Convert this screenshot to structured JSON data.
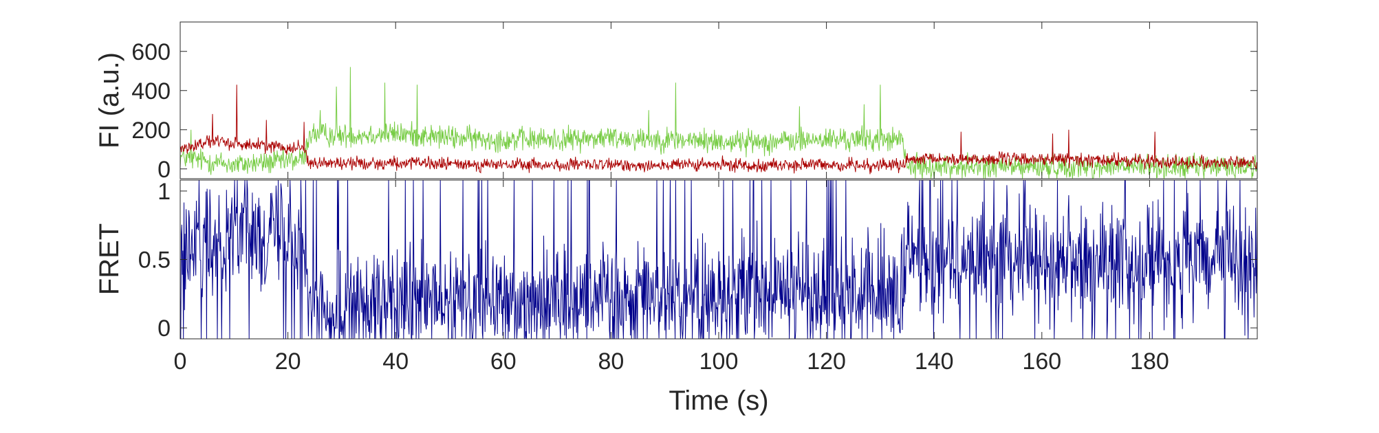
{
  "chart_data": [
    {
      "type": "line",
      "panel": "top",
      "ylabel": "FI (a.u.)",
      "xlabel": "",
      "xlim": [
        0,
        200
      ],
      "ylim": [
        -50,
        750
      ],
      "x_ticks": [
        0,
        20,
        40,
        60,
        80,
        100,
        120,
        140,
        160,
        180
      ],
      "y_ticks": [
        0,
        200,
        400,
        600
      ],
      "y_tick_labels": [
        "0",
        "200",
        "400",
        "600"
      ],
      "grid": false,
      "colors": {
        "donor": "#77cc44",
        "acceptor": "#aa0000"
      },
      "series": [
        {
          "color": "#77cc44",
          "x": [
            0,
            10,
            20,
            23,
            24,
            30,
            40,
            50,
            60,
            70,
            80,
            90,
            100,
            110,
            120,
            130,
            134,
            135,
            140,
            160,
            180,
            200
          ],
          "values": [
            60,
            20,
            40,
            50,
            180,
            170,
            180,
            160,
            150,
            150,
            160,
            150,
            140,
            140,
            150,
            150,
            150,
            10,
            10,
            10,
            10,
            10
          ],
          "noise": 90,
          "spikes": [
            [
              2,
              200
            ],
            [
              26,
              300
            ],
            [
              29,
              420
            ],
            [
              31.6,
              520
            ],
            [
              38,
              440
            ],
            [
              44,
              430
            ],
            [
              92,
              440
            ],
            [
              130,
              430
            ],
            [
              127,
              330
            ],
            [
              115,
              320
            ],
            [
              87,
              300
            ]
          ]
        },
        {
          "color": "#aa0000",
          "x": [
            0,
            5,
            10,
            15,
            20,
            23,
            24,
            40,
            60,
            80,
            100,
            120,
            134,
            135,
            140,
            160,
            180,
            200
          ],
          "values": [
            100,
            140,
            130,
            120,
            110,
            110,
            30,
            30,
            20,
            20,
            20,
            20,
            20,
            40,
            50,
            50,
            40,
            30
          ],
          "noise": 50,
          "spikes": [
            [
              10.5,
              430
            ],
            [
              6,
              280
            ],
            [
              16,
              250
            ],
            [
              23,
              240
            ],
            [
              162,
              180
            ],
            [
              181,
              190
            ],
            [
              165,
              200
            ],
            [
              145,
              190
            ]
          ]
        }
      ]
    },
    {
      "type": "line",
      "panel": "bottom",
      "ylabel": "FRET",
      "xlabel": "Time (s)",
      "xlim": [
        0,
        200
      ],
      "ylim": [
        -0.08,
        1.08
      ],
      "x_ticks": [
        0,
        20,
        40,
        60,
        80,
        100,
        120,
        140,
        160,
        180
      ],
      "x_tick_labels": [
        "0",
        "20",
        "40",
        "60",
        "80",
        "100",
        "120",
        "140",
        "160",
        "180"
      ],
      "y_ticks": [
        0,
        0.5,
        1
      ],
      "y_tick_labels": [
        "0",
        "0.5",
        "1"
      ],
      "grid": false,
      "series": [
        {
          "color": "#00008b",
          "x": [
            0,
            10,
            20,
            23,
            24,
            40,
            60,
            80,
            100,
            120,
            134,
            135,
            160,
            180,
            200
          ],
          "values": [
            0.5,
            0.75,
            0.7,
            0.65,
            0.15,
            0.15,
            0.2,
            0.25,
            0.25,
            0.25,
            0.25,
            0.5,
            0.5,
            0.5,
            0.45
          ],
          "noise": 0.6,
          "clip": [
            0,
            1
          ]
        }
      ]
    }
  ]
}
